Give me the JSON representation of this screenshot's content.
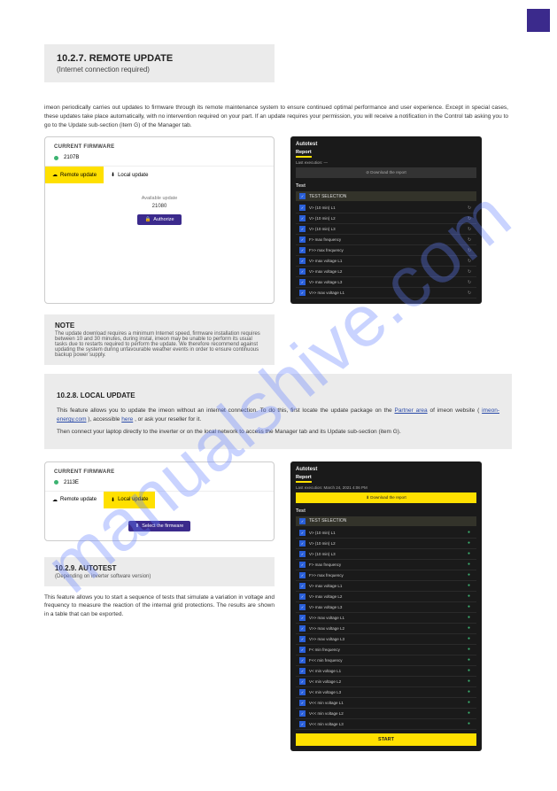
{
  "watermark": "manualshive.com",
  "page": {
    "badge_color": "#3b2a8c"
  },
  "section_title": {
    "num": "10.2.7.",
    "text": "REMOTE UPDATE",
    "sub": "(Internet connection required)"
  },
  "intro_para": "imeon periodically carries out updates to firmware through its remote maintenance system to ensure continued optimal performance and user experience. Except in special cases, these updates take place automatically, with no intervention required on your part. If an update requires your permission, you will receive a notification in the Control tab asking you to go to the Update sub-section (item G) of the Manager tab.",
  "firmware1": {
    "header": "CURRENT FIRMWARE",
    "version": "2107B",
    "tab_remote": "Remote update",
    "tab_local": "Local update",
    "available": "Available update",
    "avail_ver": "21080",
    "btn": "Authorize"
  },
  "note_title": "NOTE",
  "note_text": "The update download requires a minimum Internet speed, firmware installation requires between 10 and 30 minutes, during instal, imeon may be unable to perform its usual tasks due to restarts required to perform the update. We therefore recommend against updating the system during unfavourable weather events in order to ensure continuous backup power supply.",
  "local_title": {
    "num": "10.2.8.",
    "text": "LOCAL UPDATE"
  },
  "link_bar_text1": "This feature allows you to update the imeon without an internet connection. To do this, first locate the update package on the",
  "link_bar_link1": "Partner area",
  "link_bar_text2": " of imeon website (",
  "link_bar_link2": "imeon-energy.com",
  "link_bar_text3": "), accessible",
  "link_bar_link3": "here",
  "link_bar_text4": ", or ask your reseller for it.",
  "link_bar_text5": "Then connect your laptop directly to the inverter or on the local network to access the Manager tab and its Update sub-section (item G).",
  "firmware2": {
    "header": "CURRENT FIRMWARE",
    "version": "2113E",
    "tab_remote": "Remote update",
    "tab_local": "Local update",
    "btn": "Select the firmware"
  },
  "autotest_title": {
    "num": "10.2.9.",
    "text": "AUTOTEST",
    "sub": "(Depending on inverter software version)"
  },
  "autotest_para": "This feature allows you to start a sequence of tests that simulate a variation in voltage and frequency to measure the reaction of the internal grid protections. The results are shown in a table that can be exported.",
  "autotest1": {
    "title": "Autotest",
    "report": "Report",
    "last": "Last execution: —",
    "download": "⊘ Download the report",
    "test": "Test",
    "selection": "TEST SELECTION",
    "items": [
      "V> (10 min) L1",
      "V> (10 min) L2",
      "V> (10 min) L3",
      "F> max frequency",
      "F>> max frequency",
      "V> max voltage L1",
      "V> max voltage L2",
      "V> max voltage L3",
      "V>> max voltage L1"
    ]
  },
  "autotest2": {
    "title": "Autotest",
    "report": "Report",
    "last": "Last execution: March 24, 2021 4:06 PM",
    "download": "⬇ Download the report",
    "test": "Test",
    "selection": "TEST SELECTION",
    "items": [
      "V> (10 min) L1",
      "V> (10 min) L2",
      "V> (10 min) L3",
      "F> max frequency",
      "F>> max frequency",
      "V> max voltage L1",
      "V> max voltage L2",
      "V> max voltage L3",
      "V>> max voltage L1",
      "V>> max voltage L2",
      "V>> max voltage L3",
      "F< min frequency",
      "F<< min frequency",
      "V< min voltage L1",
      "V< min voltage L2",
      "V< min voltage L3",
      "V<< min voltage L1",
      "V<< min voltage L2",
      "V<< min voltage L3"
    ],
    "start": "START"
  }
}
